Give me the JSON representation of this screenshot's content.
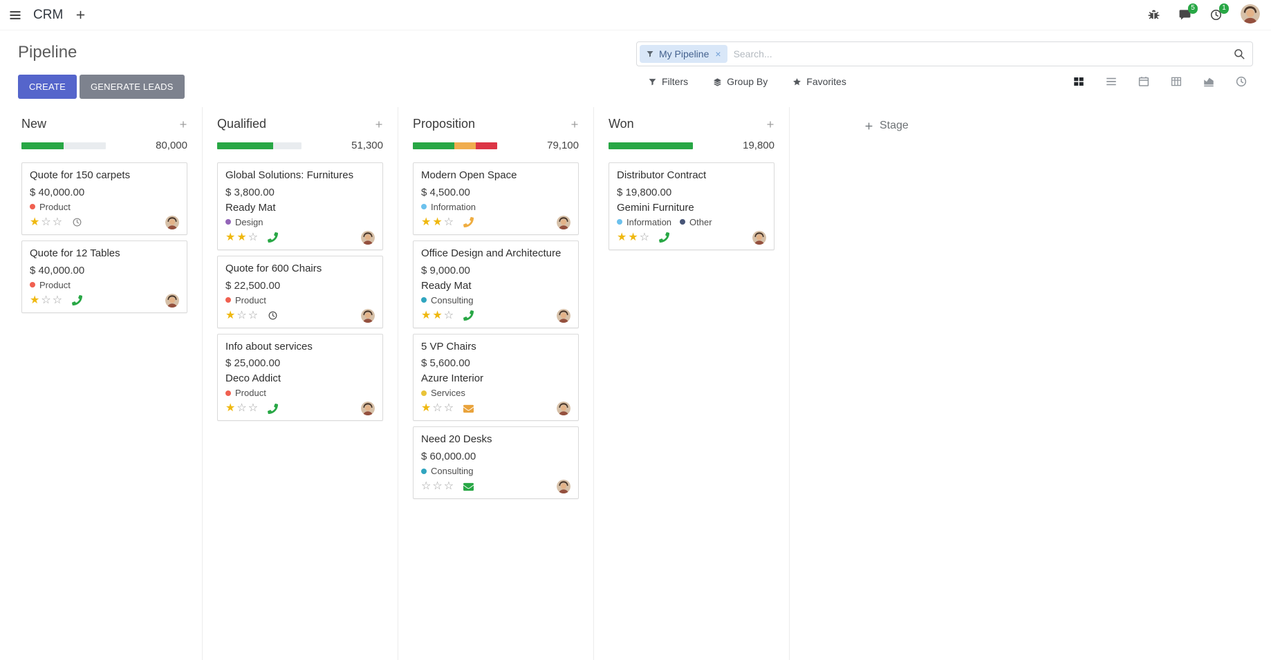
{
  "navbar": {
    "app_name": "CRM",
    "messages_badge": "5",
    "activities_badge": "1"
  },
  "control_panel": {
    "title": "Pipeline",
    "create_label": "CREATE",
    "generate_leads_label": "GENERATE LEADS",
    "search": {
      "facet_label": "My Pipeline",
      "placeholder": "Search...",
      "remove_facet": "×"
    },
    "filters_label": "Filters",
    "group_by_label": "Group By",
    "favorites_label": "Favorites"
  },
  "view_switcher": {
    "active": "kanban",
    "views": [
      "kanban",
      "list",
      "calendar",
      "pivot",
      "graph",
      "activity"
    ]
  },
  "colors": {
    "primary": "#5565cb",
    "secondary": "#7d828e",
    "success": "#28a745",
    "warning": "#f0ad4e",
    "danger": "#dc3545"
  },
  "board": {
    "add_stage_label": "Stage",
    "columns": [
      {
        "name": "New",
        "total": "80,000",
        "progress": [
          {
            "color": "#28a745",
            "pct": 50
          }
        ],
        "cards": [
          {
            "title": "Quote for 150 carpets",
            "amount": "$ 40,000.00",
            "tags": [
              {
                "label": "Product",
                "color": "#F06050"
              }
            ],
            "stars": 1,
            "activity": {
              "icon": "clock",
              "color": "#8c8c8c"
            }
          },
          {
            "title": "Quote for 12 Tables",
            "amount": "$ 40,000.00",
            "tags": [
              {
                "label": "Product",
                "color": "#F06050"
              }
            ],
            "stars": 1,
            "activity": {
              "icon": "phone",
              "color": "#28a745"
            }
          }
        ]
      },
      {
        "name": "Qualified",
        "total": "51,300",
        "progress": [
          {
            "color": "#28a745",
            "pct": 66
          }
        ],
        "cards": [
          {
            "title": "Global Solutions: Furnitures",
            "amount": "$ 3,800.00",
            "partner": "Ready Mat",
            "tags": [
              {
                "label": "Design",
                "color": "#9365B8"
              }
            ],
            "stars": 2,
            "activity": {
              "icon": "phone",
              "color": "#28a745"
            }
          },
          {
            "title": "Quote for 600 Chairs",
            "amount": "$ 22,500.00",
            "tags": [
              {
                "label": "Product",
                "color": "#F06050"
              }
            ],
            "stars": 1,
            "activity": {
              "icon": "clock",
              "color": "#515151"
            }
          },
          {
            "title": "Info about services",
            "amount": "$ 25,000.00",
            "partner": "Deco Addict",
            "tags": [
              {
                "label": "Product",
                "color": "#F06050"
              }
            ],
            "stars": 1,
            "activity": {
              "icon": "phone",
              "color": "#28a745"
            }
          }
        ]
      },
      {
        "name": "Proposition",
        "total": "79,100",
        "progress": [
          {
            "color": "#28a745",
            "pct": 49
          },
          {
            "color": "#f0ad4e",
            "pct": 26
          },
          {
            "color": "#dc3545",
            "pct": 25
          }
        ],
        "cards": [
          {
            "title": "Modern Open Space",
            "amount": "$ 4,500.00",
            "tags": [
              {
                "label": "Information",
                "color": "#6CC1ED"
              }
            ],
            "stars": 2,
            "activity": {
              "icon": "phone",
              "color": "#efad41"
            }
          },
          {
            "title": "Office Design and Architecture",
            "amount": "$ 9,000.00",
            "partner": "Ready Mat",
            "tags": [
              {
                "label": "Consulting",
                "color": "#30a5bf"
              }
            ],
            "stars": 2,
            "activity": {
              "icon": "phone",
              "color": "#28a745"
            }
          },
          {
            "title": "5 VP Chairs",
            "amount": "$ 5,600.00",
            "partner": "Azure Interior",
            "tags": [
              {
                "label": "Services",
                "color": "#e9c338"
              }
            ],
            "stars": 1,
            "activity": {
              "icon": "envelope",
              "color": "#e9a33c"
            }
          },
          {
            "title": "Need 20 Desks",
            "amount": "$ 60,000.00",
            "tags": [
              {
                "label": "Consulting",
                "color": "#30a5bf"
              }
            ],
            "stars": 0,
            "activity": {
              "icon": "envelope",
              "color": "#28a745"
            }
          }
        ]
      },
      {
        "name": "Won",
        "total": "19,800",
        "progress": [
          {
            "color": "#28a745",
            "pct": 100
          }
        ],
        "cards": [
          {
            "title": "Distributor Contract",
            "amount": "$ 19,800.00",
            "partner": "Gemini Furniture",
            "tags": [
              {
                "label": "Information",
                "color": "#6CC1ED"
              },
              {
                "label": "Other",
                "color": "#475577"
              }
            ],
            "stars": 2,
            "activity": {
              "icon": "phone",
              "color": "#28a745"
            }
          }
        ]
      }
    ]
  }
}
